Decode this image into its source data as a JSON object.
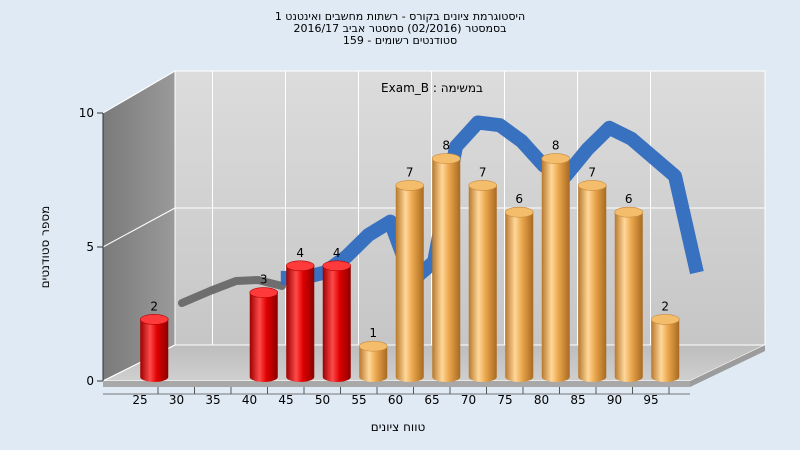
{
  "chart_data": {
    "type": "bar",
    "title_lines": [
      "היסטוגרמת ציונים בקורס - רשתות מחשבים ואינטנט 1",
      "בסמסטר  (02/2016)  סמסטר אביב 2016/17",
      "סטודנטים רשומים - 159"
    ],
    "subtitle": "במשימה : Exam_B",
    "xlabel": "טווח ציונים",
    "ylabel": "מספר סטודנטים",
    "x_ticks": [
      25,
      30,
      35,
      40,
      45,
      50,
      55,
      60,
      65,
      70,
      75,
      80,
      85,
      90,
      95
    ],
    "y_ticks": [
      0,
      5,
      10
    ],
    "ylim": [
      0,
      10
    ],
    "grid": true,
    "bars": [
      {
        "x": 27.5,
        "value": 2,
        "color": "#e00000"
      },
      {
        "x": 42.5,
        "value": 3,
        "color": "#e00000"
      },
      {
        "x": 47.5,
        "value": 4,
        "color": "#e00000"
      },
      {
        "x": 52.5,
        "value": 4,
        "color": "#e00000"
      },
      {
        "x": 57.5,
        "value": 1,
        "color": "#e8a040"
      },
      {
        "x": 62.5,
        "value": 7,
        "color": "#e8a040"
      },
      {
        "x": 67.5,
        "value": 8,
        "color": "#e8a040"
      },
      {
        "x": 72.5,
        "value": 7,
        "color": "#e8a040"
      },
      {
        "x": 77.5,
        "value": 6,
        "color": "#e8a040"
      },
      {
        "x": 82.5,
        "value": 8,
        "color": "#e8a040"
      },
      {
        "x": 87.5,
        "value": 7,
        "color": "#e8a040"
      },
      {
        "x": 92.5,
        "value": 6,
        "color": "#e8a040"
      },
      {
        "x": 97.5,
        "value": 2,
        "color": "#e8a040"
      }
    ],
    "trend_line": {
      "color": "#2f6bbf",
      "x": [
        41,
        44,
        47,
        50,
        53,
        56,
        59,
        62,
        65,
        68,
        71,
        74,
        77,
        80,
        83,
        86,
        89,
        92,
        95,
        98
      ],
      "y": [
        3.1,
        3.1,
        3.3,
        3.9,
        4.7,
        5.2,
        3.0,
        3.7,
        8.0,
        8.9,
        8.8,
        8.2,
        7.3,
        6.9,
        7.9,
        8.7,
        8.3,
        7.6,
        6.9,
        3.3
      ]
    },
    "colors": {
      "below_pass": "#e00000",
      "pass": "#e8a040",
      "trend": "#2f6bbf"
    }
  }
}
